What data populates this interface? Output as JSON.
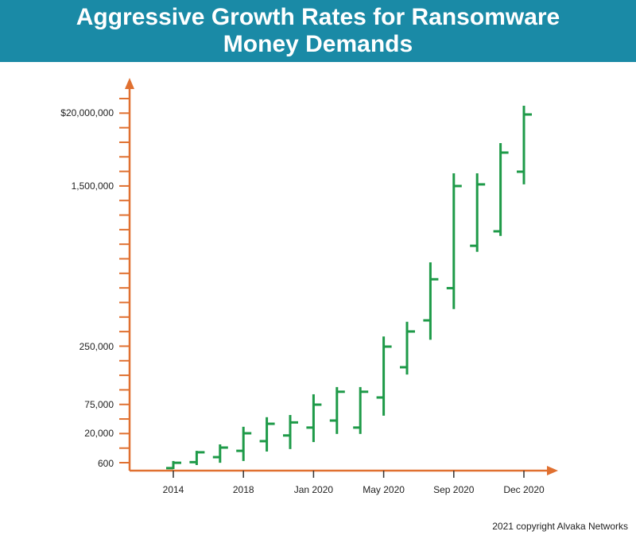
{
  "header": {
    "title": "Aggressive Growth Rates for Ransomware Money Demands"
  },
  "footer": {
    "copyright": "2021 copyright Alvaka Networks"
  },
  "colors": {
    "banner": "#1a8aa6",
    "axis": "#e07030",
    "bars": "#1e9a48"
  },
  "chart_data": {
    "type": "ohlc",
    "title": "Aggressive Growth Rates for Ransomware Money Demands",
    "xlabel": "",
    "ylabel": "",
    "y_scale": "nonlinear",
    "y_tick_labels": [
      {
        "value": 600,
        "label": "600"
      },
      {
        "value": 20000,
        "label": "20,000"
      },
      {
        "value": 75000,
        "label": "75,000"
      },
      {
        "value": 250000,
        "label": "250,000"
      },
      {
        "value": 1500000,
        "label": "1,500,000"
      },
      {
        "value": 20000000,
        "label": "$20,000,000"
      }
    ],
    "x_tick_labels": [
      {
        "index": 0,
        "label": "2014"
      },
      {
        "index": 3,
        "label": "2018"
      },
      {
        "index": 6,
        "label": "Jan 2020"
      },
      {
        "index": 9,
        "label": "May 2020"
      },
      {
        "index": 12,
        "label": "Sep 2020"
      },
      {
        "index": 15,
        "label": "Dec 2020"
      }
    ],
    "grid": false,
    "series": [
      {
        "open": 350,
        "high": 800,
        "low": 300,
        "close": 650
      },
      {
        "open": 700,
        "high": 2600,
        "low": 500,
        "close": 2200
      },
      {
        "open": 1250,
        "high": 5500,
        "low": 650,
        "close": 3800
      },
      {
        "open": 2600,
        "high": 27000,
        "low": 800,
        "close": 20000
      },
      {
        "open": 8000,
        "high": 42000,
        "low": 2400,
        "close": 31000
      },
      {
        "open": 15500,
        "high": 46500,
        "low": 3200,
        "close": 33000
      },
      {
        "open": 26000,
        "high": 93000,
        "low": 7200,
        "close": 75000
      },
      {
        "open": 36000,
        "high": 108000,
        "low": 18500,
        "close": 98000
      },
      {
        "open": 26000,
        "high": 108000,
        "low": 18500,
        "close": 98000
      },
      {
        "open": 87000,
        "high": 280000,
        "low": 45000,
        "close": 250000
      },
      {
        "open": 163000,
        "high": 330000,
        "low": 140000,
        "close": 296000
      },
      {
        "open": 335000,
        "high": 640000,
        "low": 270000,
        "close": 530000
      },
      {
        "open": 480000,
        "high": 2350000,
        "low": 380000,
        "close": 1500000
      },
      {
        "open": 770000,
        "high": 2350000,
        "low": 720000,
        "close": 1590000
      },
      {
        "open": 905000,
        "high": 6860000,
        "low": 860000,
        "close": 4900000
      },
      {
        "open": 2490000,
        "high": 25800000,
        "low": 1590000,
        "close": 18900000
      }
    ]
  }
}
